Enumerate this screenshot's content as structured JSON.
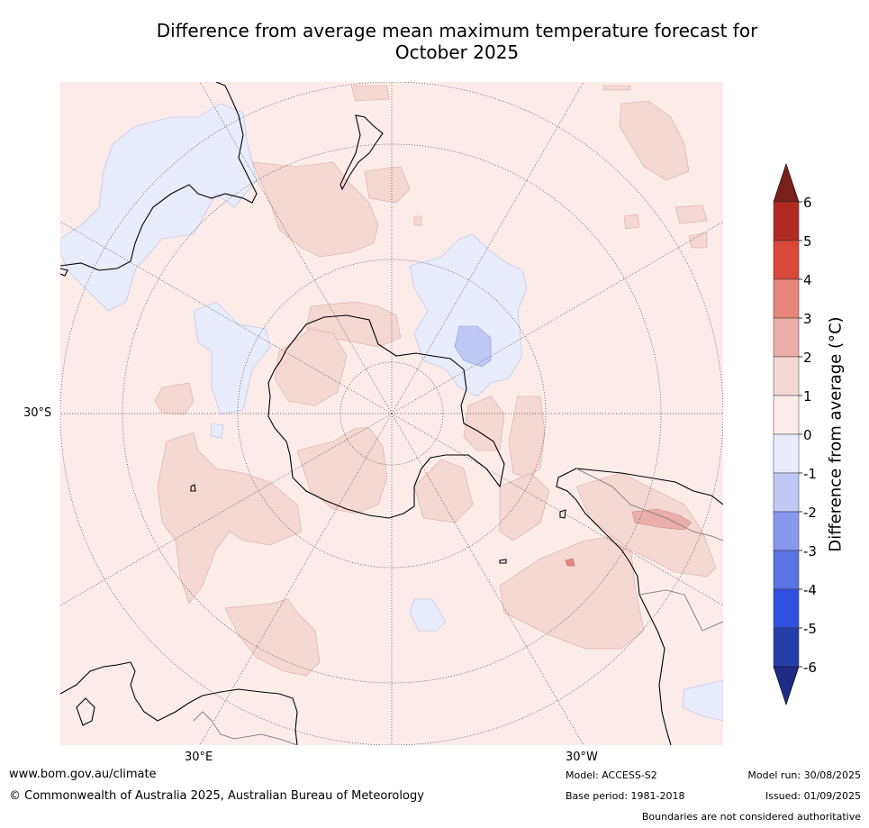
{
  "title": {
    "line1": "Difference from average mean maximum temperature forecast for",
    "line2": "October 2025"
  },
  "map": {
    "projection": "south polar stereographic",
    "lat_labels": [
      {
        "text": "30°S"
      }
    ],
    "lon_labels": [
      {
        "text": "30°E"
      },
      {
        "text": "30°W"
      }
    ]
  },
  "colorbar": {
    "label": "Difference from average (",
    "label_unit": "°C)",
    "ticks": [
      "6",
      "5",
      "4",
      "3",
      "2",
      "1",
      "0",
      "-1",
      "-2",
      "-3",
      "-4",
      "-5",
      "-6"
    ],
    "colors": [
      "#7b1f1a",
      "#b02a22",
      "#d9483b",
      "#e8857c",
      "#ecaea8",
      "#f5d7d4",
      "#fbecea",
      "#e8ecfb",
      "#c0c8f3",
      "#8898ec",
      "#5a73e3",
      "#2f4fde",
      "#263ea8",
      "#1f2a82"
    ]
  },
  "footer": {
    "url": "www.bom.gov.au/climate",
    "copyright": "© Commonwealth of Australia 2025, Australian Bureau of Meteorology",
    "model": "Model: ACCESS-S2",
    "base_period": "Base period: 1981-2018",
    "model_run": "Model run: 30/08/2025",
    "issued": "Issued: 01/09/2025",
    "disclaimer": "Boundaries are not considered authoritative"
  }
}
